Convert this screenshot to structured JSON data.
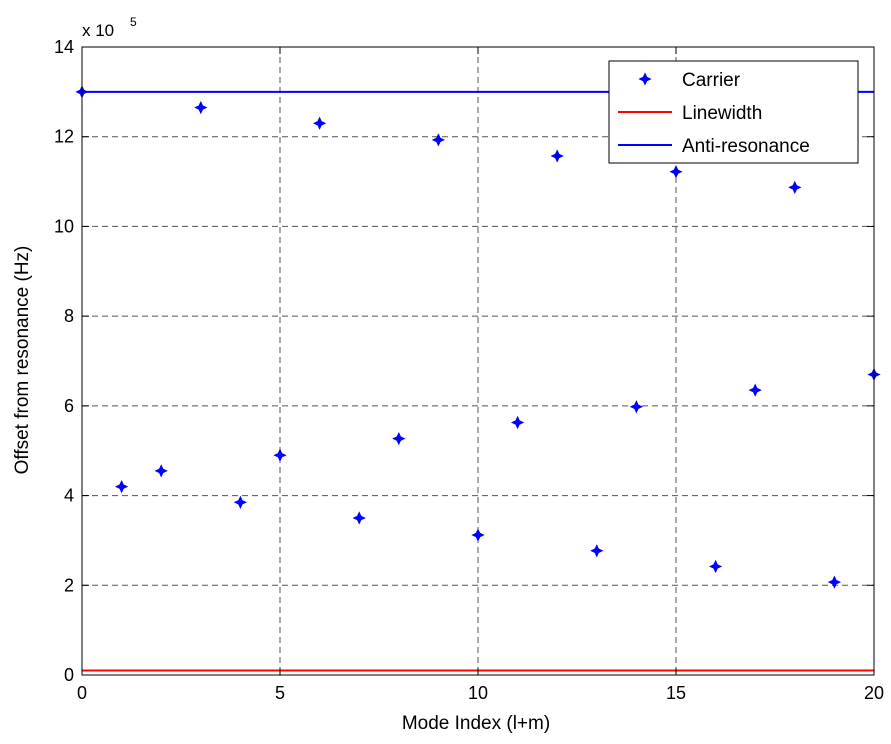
{
  "chart_data": {
    "type": "scatter",
    "xlabel": "Mode Index (l+m)",
    "ylabel": "Offset from resonance (Hz)",
    "y_multiplier": "x 10",
    "y_multiplier_exp": "5",
    "xlim": [
      0,
      20
    ],
    "ylim": [
      0,
      14
    ],
    "x_ticks": [
      0,
      5,
      10,
      15,
      20
    ],
    "y_ticks": [
      0,
      2,
      4,
      6,
      8,
      10,
      12,
      14
    ],
    "grid": true,
    "legend_position": "top-right",
    "legend": [
      {
        "label": "Carrier",
        "color": "#0000ff",
        "marker": "star"
      },
      {
        "label": "Linewidth",
        "color": "#ff0000",
        "marker": "line"
      },
      {
        "label": "Anti-resonance",
        "color": "#0000ff",
        "marker": "line"
      }
    ],
    "series": [
      {
        "name": "Carrier",
        "color": "#0000ff",
        "x": [
          0,
          1,
          2,
          3,
          4,
          5,
          6,
          7,
          8,
          9,
          10,
          11,
          12,
          13,
          14,
          15,
          16,
          17,
          18,
          19,
          20
        ],
        "y": [
          13.0,
          4.2,
          4.55,
          12.65,
          3.85,
          4.9,
          12.3,
          3.5,
          5.27,
          11.93,
          3.12,
          5.63,
          11.57,
          2.77,
          5.98,
          11.22,
          2.42,
          6.35,
          10.87,
          2.07,
          6.7
        ]
      },
      {
        "name": "Linewidth",
        "color": "#ff0000",
        "x": [
          0,
          20
        ],
        "y": [
          0.1,
          0.1
        ]
      },
      {
        "name": "Anti-resonance",
        "color": "#0000ff",
        "x": [
          0,
          20
        ],
        "y": [
          13.0,
          13.0
        ]
      }
    ]
  }
}
